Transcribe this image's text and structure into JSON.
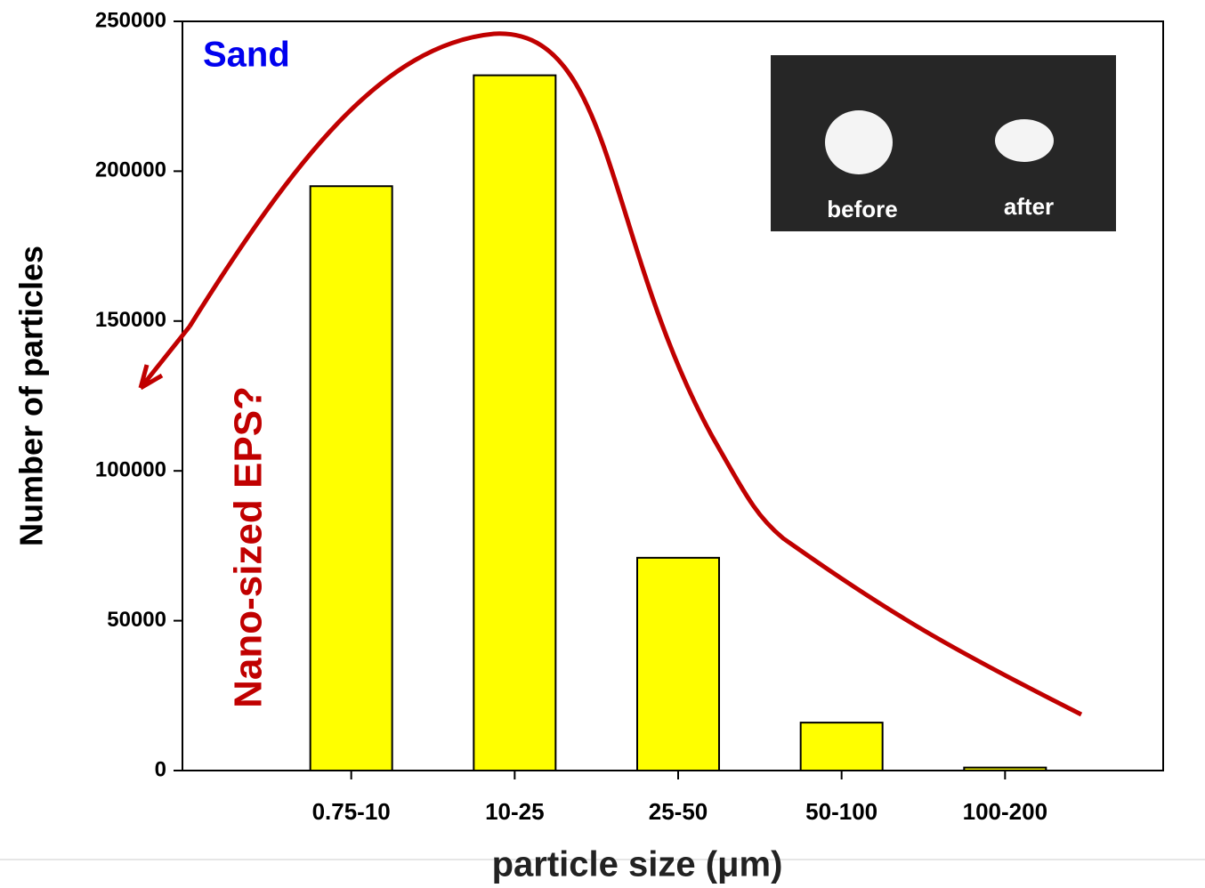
{
  "chart_data": {
    "type": "bar",
    "categories": [
      "0.75-10",
      "10-25",
      "25-50",
      "50-100",
      "100-200"
    ],
    "values": [
      195000,
      232000,
      71000,
      16000,
      1000
    ],
    "color": "#ffff00",
    "ylim": [
      0,
      250000
    ],
    "yticks": [
      0,
      50000,
      100000,
      150000,
      200000,
      250000
    ],
    "y_label": "Number of particles",
    "x_label": "particle size (μm)",
    "annotations": {
      "sand": "Sand",
      "nano": "Nano-sized EPS?",
      "before": "before",
      "after": "after"
    }
  }
}
